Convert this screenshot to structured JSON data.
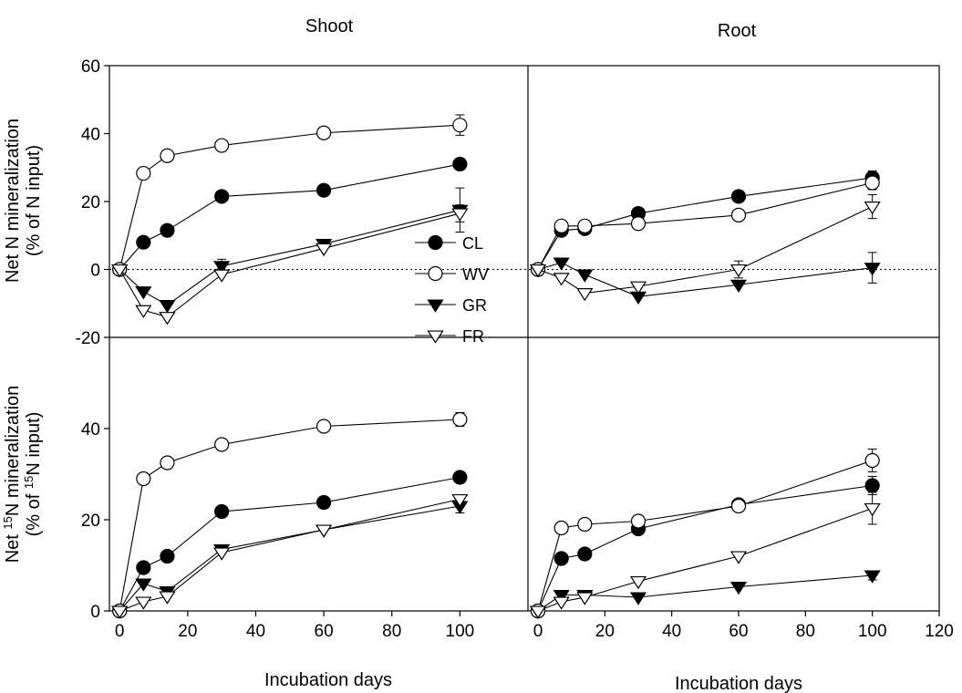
{
  "chart_data": {
    "type": "line",
    "titles": {
      "left": "Shoot",
      "right": "Root"
    },
    "xlabel": "Incubation days",
    "ylabel_top": [
      "Net N mineralization",
      "(% of N input)"
    ],
    "ylabel_bottom": [
      [
        {
          "t": "Net "
        },
        {
          "t": "15",
          "sup": true
        },
        {
          "t": "N mineralization"
        }
      ],
      [
        {
          "t": "(% of "
        },
        {
          "t": "15",
          "sup": true
        },
        {
          "t": "N input)"
        }
      ]
    ],
    "x_ticks_left": [
      "0",
      "20",
      "40",
      "60",
      "80",
      "100"
    ],
    "x_ticks_right": [
      "0",
      "20",
      "40",
      "60",
      "80",
      "100",
      "120"
    ],
    "y_ticks_top": [
      "60",
      "40",
      "20",
      "0",
      "-20"
    ],
    "y_ticks_bottom": [
      "40",
      "20",
      "0"
    ],
    "xlim": [
      -3,
      120
    ],
    "ylim_top": [
      -20,
      60
    ],
    "ylim_bottom": [
      0,
      60
    ],
    "zero_line_top": "dotted",
    "legend": {
      "placement": "top-left panel, lower right",
      "entries": [
        {
          "name": "CL",
          "marker": "circle",
          "fill": "#000000"
        },
        {
          "name": "WV",
          "marker": "circle",
          "fill": "#ffffff"
        },
        {
          "name": "GR",
          "marker": "triangle-down",
          "fill": "#000000"
        },
        {
          "name": "FR",
          "marker": "triangle-down",
          "fill": "#ffffff"
        }
      ]
    },
    "panels": [
      {
        "id": "shoot-net-n",
        "series": [
          {
            "name": "CL",
            "points": [
              [
                0,
                0
              ],
              [
                7,
                8
              ],
              [
                14,
                11.5
              ],
              [
                30,
                21.5
              ],
              [
                60,
                23.3
              ],
              [
                100,
                31
              ]
            ],
            "err": [
              0,
              0,
              0,
              0,
              0,
              0
            ]
          },
          {
            "name": "WV",
            "points": [
              [
                0,
                0
              ],
              [
                7,
                28.3
              ],
              [
                14,
                33.5
              ],
              [
                30,
                36.5
              ],
              [
                60,
                40.2
              ],
              [
                100,
                42.5
              ]
            ],
            "err": [
              0,
              0,
              0,
              0,
              0,
              3
            ]
          },
          {
            "name": "GR",
            "points": [
              [
                0,
                0
              ],
              [
                7,
                -6.5
              ],
              [
                14,
                -10.5
              ],
              [
                30,
                1
              ],
              [
                60,
                7.5
              ],
              [
                100,
                17.5
              ]
            ],
            "err": [
              0,
              0,
              0,
              2,
              0,
              6.5
            ]
          },
          {
            "name": "FR",
            "points": [
              [
                0,
                0
              ],
              [
                7,
                -12
              ],
              [
                14,
                -14
              ],
              [
                30,
                -1.5
              ],
              [
                60,
                6.2
              ],
              [
                100,
                16.5
              ]
            ],
            "err": [
              0,
              0,
              0,
              0,
              0,
              2.5
            ]
          }
        ]
      },
      {
        "id": "root-net-n",
        "series": [
          {
            "name": "CL",
            "points": [
              [
                0,
                0
              ],
              [
                7,
                11.5
              ],
              [
                14,
                12
              ],
              [
                30,
                16.5
              ],
              [
                60,
                21.5
              ],
              [
                100,
                27
              ]
            ],
            "err": [
              0,
              0,
              0,
              0,
              0,
              2
            ]
          },
          {
            "name": "WV",
            "points": [
              [
                0,
                0
              ],
              [
                7,
                12.8
              ],
              [
                14,
                12.8
              ],
              [
                30,
                13.5
              ],
              [
                60,
                16
              ],
              [
                100,
                25.5
              ]
            ],
            "err": [
              0,
              0,
              0,
              0,
              0,
              2
            ]
          },
          {
            "name": "GR",
            "points": [
              [
                0,
                0
              ],
              [
                7,
                2
              ],
              [
                14,
                -1.5
              ],
              [
                30,
                -8
              ],
              [
                60,
                -4.5
              ],
              [
                100,
                0.5
              ]
            ],
            "err": [
              0,
              0,
              0,
              0,
              0,
              4.5
            ]
          },
          {
            "name": "FR",
            "points": [
              [
                0,
                0
              ],
              [
                7,
                -2.5
              ],
              [
                14,
                -7
              ],
              [
                30,
                -5
              ],
              [
                60,
                0
              ],
              [
                100,
                18.5
              ]
            ],
            "err": [
              0,
              0,
              0,
              0,
              2.5,
              3.5
            ]
          }
        ]
      },
      {
        "id": "shoot-net-15n",
        "series": [
          {
            "name": "CL",
            "points": [
              [
                0,
                0
              ],
              [
                7,
                9.5
              ],
              [
                14,
                12
              ],
              [
                30,
                21.8
              ],
              [
                60,
                23.8
              ],
              [
                100,
                29.3
              ]
            ],
            "err": [
              0,
              0,
              0,
              0,
              0,
              0
            ]
          },
          {
            "name": "WV",
            "points": [
              [
                0,
                0
              ],
              [
                7,
                29
              ],
              [
                14,
                32.5
              ],
              [
                30,
                36.5
              ],
              [
                60,
                40.5
              ],
              [
                100,
                42
              ]
            ],
            "err": [
              0,
              0,
              0,
              0,
              0,
              1.5
            ]
          },
          {
            "name": "GR",
            "points": [
              [
                0,
                0
              ],
              [
                7,
                6
              ],
              [
                14,
                4.3
              ],
              [
                30,
                13.5
              ],
              [
                60,
                17.8
              ],
              [
                100,
                23
              ]
            ],
            "err": [
              0,
              0,
              0,
              0,
              0,
              1.5
            ]
          },
          {
            "name": "FR",
            "points": [
              [
                0,
                0
              ],
              [
                7,
                2
              ],
              [
                14,
                3.2
              ],
              [
                30,
                12.8
              ],
              [
                60,
                17.8
              ],
              [
                100,
                24.5
              ]
            ],
            "err": [
              0,
              0,
              0,
              0,
              0,
              0
            ]
          }
        ]
      },
      {
        "id": "root-net-15n",
        "series": [
          {
            "name": "CL",
            "points": [
              [
                0,
                0
              ],
              [
                7,
                11.5
              ],
              [
                14,
                12.5
              ],
              [
                30,
                18
              ],
              [
                60,
                23.3
              ],
              [
                100,
                27.5
              ]
            ],
            "err": [
              0,
              0,
              0,
              0,
              0,
              2
            ]
          },
          {
            "name": "WV",
            "points": [
              [
                0,
                0
              ],
              [
                7,
                18.2
              ],
              [
                14,
                19
              ],
              [
                30,
                19.7
              ],
              [
                60,
                23
              ],
              [
                100,
                33
              ]
            ],
            "err": [
              0,
              0,
              0,
              0,
              0,
              2.5
            ]
          },
          {
            "name": "GR",
            "points": [
              [
                0,
                0
              ],
              [
                7,
                3.5
              ],
              [
                14,
                3.5
              ],
              [
                30,
                3
              ],
              [
                60,
                5.3
              ],
              [
                100,
                7.8
              ]
            ],
            "err": [
              0,
              0,
              0,
              0,
              0,
              1
            ]
          },
          {
            "name": "FR",
            "points": [
              [
                0,
                0
              ],
              [
                7,
                2
              ],
              [
                14,
                3
              ],
              [
                30,
                6.5
              ],
              [
                60,
                12
              ],
              [
                100,
                22.5
              ]
            ],
            "err": [
              0,
              0,
              0,
              0,
              0,
              3.5
            ]
          }
        ]
      }
    ]
  }
}
